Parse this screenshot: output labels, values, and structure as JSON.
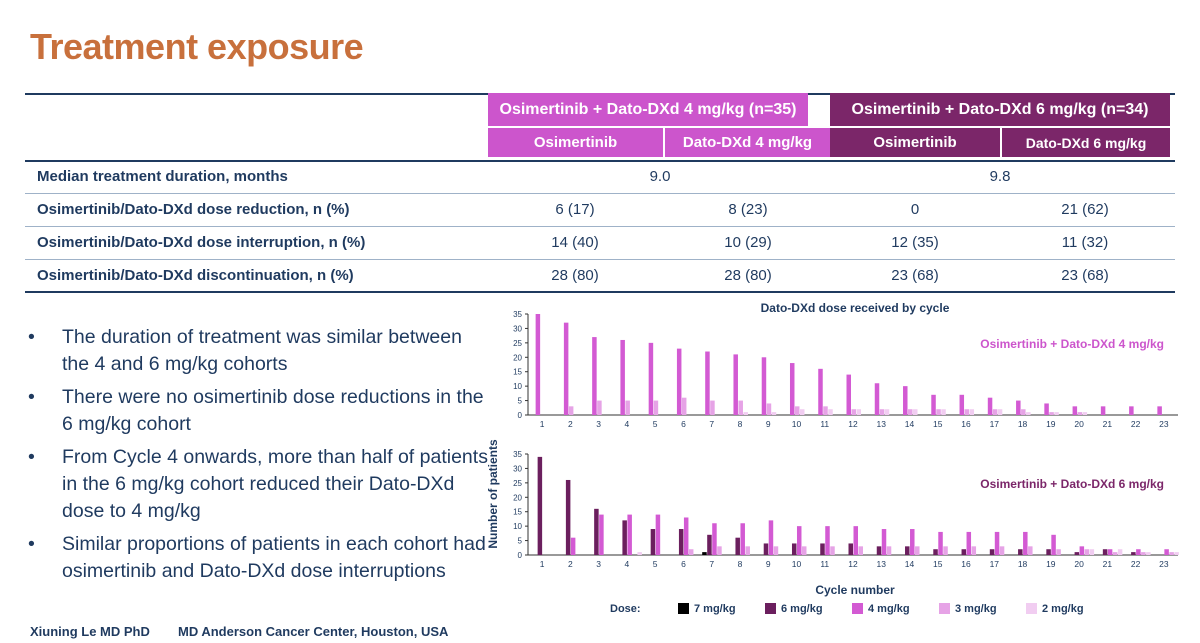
{
  "title": "Treatment exposure",
  "table": {
    "group_headers": [
      "Osimertinib + Dato-DXd 4 mg/kg (n=35)",
      "Osimertinib + Dato-DXd 6 mg/kg (n=34)"
    ],
    "sub_headers": [
      "Osimertinib",
      "Dato-DXd 4 mg/kg",
      "Osimertinib",
      "Dato-DXd 6 mg/kg"
    ],
    "rows": [
      {
        "label": "Median treatment duration, months",
        "g1": "9.0",
        "g2": "9.8"
      },
      {
        "label": "Osimertinib/Dato-DXd dose reduction, n (%)",
        "values": [
          "6 (17)",
          "8 (23)",
          "0",
          "21 (62)"
        ]
      },
      {
        "label": "Osimertinib/Dato-DXd dose interruption, n (%)",
        "values": [
          "14 (40)",
          "10 (29)",
          "12 (35)",
          "11 (32)"
        ]
      },
      {
        "label": "Osimertinib/Dato-DXd discontinuation, n (%)",
        "values": [
          "28 (80)",
          "28 (80)",
          "23 (68)",
          "23 (68)"
        ]
      }
    ]
  },
  "bullets": [
    "The duration of treatment was similar between the 4 and 6 mg/kg cohorts",
    "There were no osimertinib dose reductions in the 6 mg/kg cohort",
    "From Cycle 4 onwards, more than half of patients in the 6 mg/kg cohort reduced their Dato-DXd dose to 4 mg/kg",
    "Similar proportions of patients in each cohort had osimertinib and Dato-DXd dose interruptions"
  ],
  "footer": {
    "author": "Xiuning Le MD PhD",
    "affiliation": "MD Anderson Cancer Center, Houston, USA"
  },
  "colors": {
    "title": "#c8703c",
    "text": "#1f3a5f",
    "cohort4": "#cc55cc",
    "cohort6": "#7b2669",
    "7 mg/kg": "#000000",
    "6 mg/kg": "#6b1f5e",
    "4 mg/kg": "#d35ad3",
    "3 mg/kg": "#e6a3e6",
    "2 mg/kg": "#f1cdf1"
  },
  "chart_data": {
    "type": "bar",
    "title": "Dato-DXd dose received by cycle",
    "ylabel": "Number of patients",
    "xlabel": "Cycle number",
    "ylim": [
      0,
      35
    ],
    "yticks": [
      0,
      5,
      10,
      15,
      20,
      25,
      30,
      35
    ],
    "categories": [
      "1",
      "2",
      "3",
      "4",
      "5",
      "6",
      "7",
      "8",
      "9",
      "10",
      "11",
      "12",
      "13",
      "14",
      "15",
      "16",
      "17",
      "18",
      "19",
      "20",
      "21",
      "22",
      "23"
    ],
    "legend_title": "Dose:",
    "legend": [
      "7 mg/kg",
      "6 mg/kg",
      "4 mg/kg",
      "3 mg/kg",
      "2 mg/kg"
    ],
    "legend_position": "bottom",
    "panels": [
      {
        "label": "Osimertinib + Dato-DXd 4 mg/kg",
        "series": [
          {
            "name": "4 mg/kg",
            "values": [
              35,
              32,
              27,
              26,
              25,
              23,
              22,
              21,
              20,
              18,
              16,
              14,
              11,
              10,
              7,
              7,
              6,
              5,
              4,
              3,
              3,
              3,
              3
            ]
          },
          {
            "name": "3 mg/kg",
            "values": [
              0,
              3,
              5,
              5,
              5,
              6,
              5,
              5,
              4,
              3,
              3,
              2,
              2,
              2,
              2,
              2,
              2,
              2,
              1,
              1,
              0,
              0,
              0
            ]
          },
          {
            "name": "2 mg/kg",
            "values": [
              0,
              0,
              0,
              0,
              0,
              0,
              0,
              1,
              1,
              2,
              2,
              2,
              2,
              2,
              2,
              2,
              2,
              1,
              1,
              1,
              0,
              0,
              0
            ]
          }
        ]
      },
      {
        "label": "Osimertinib + Dato-DXd 6 mg/kg",
        "series": [
          {
            "name": "7 mg/kg",
            "values": [
              0,
              0,
              0,
              0,
              0,
              0,
              1,
              0,
              0,
              0,
              0,
              0,
              0,
              0,
              0,
              0,
              0,
              0,
              0,
              0,
              0,
              0,
              0
            ]
          },
          {
            "name": "6 mg/kg",
            "values": [
              34,
              26,
              16,
              12,
              9,
              9,
              7,
              6,
              4,
              4,
              4,
              4,
              3,
              3,
              2,
              2,
              2,
              2,
              2,
              1,
              2,
              1,
              0
            ]
          },
          {
            "name": "4 mg/kg",
            "values": [
              0,
              6,
              14,
              14,
              14,
              13,
              11,
              11,
              12,
              10,
              10,
              10,
              9,
              9,
              8,
              8,
              8,
              8,
              7,
              3,
              2,
              2,
              2
            ]
          },
          {
            "name": "3 mg/kg",
            "values": [
              0,
              0,
              0,
              0,
              0,
              2,
              3,
              3,
              3,
              3,
              3,
              3,
              3,
              3,
              3,
              3,
              3,
              3,
              2,
              2,
              1,
              1,
              1
            ]
          },
          {
            "name": "2 mg/kg",
            "values": [
              0,
              0,
              0,
              1,
              0,
              0,
              0,
              0,
              0,
              0,
              0,
              0,
              0,
              0,
              0,
              0,
              0,
              0,
              0,
              2,
              2,
              1,
              1
            ]
          }
        ]
      }
    ]
  }
}
